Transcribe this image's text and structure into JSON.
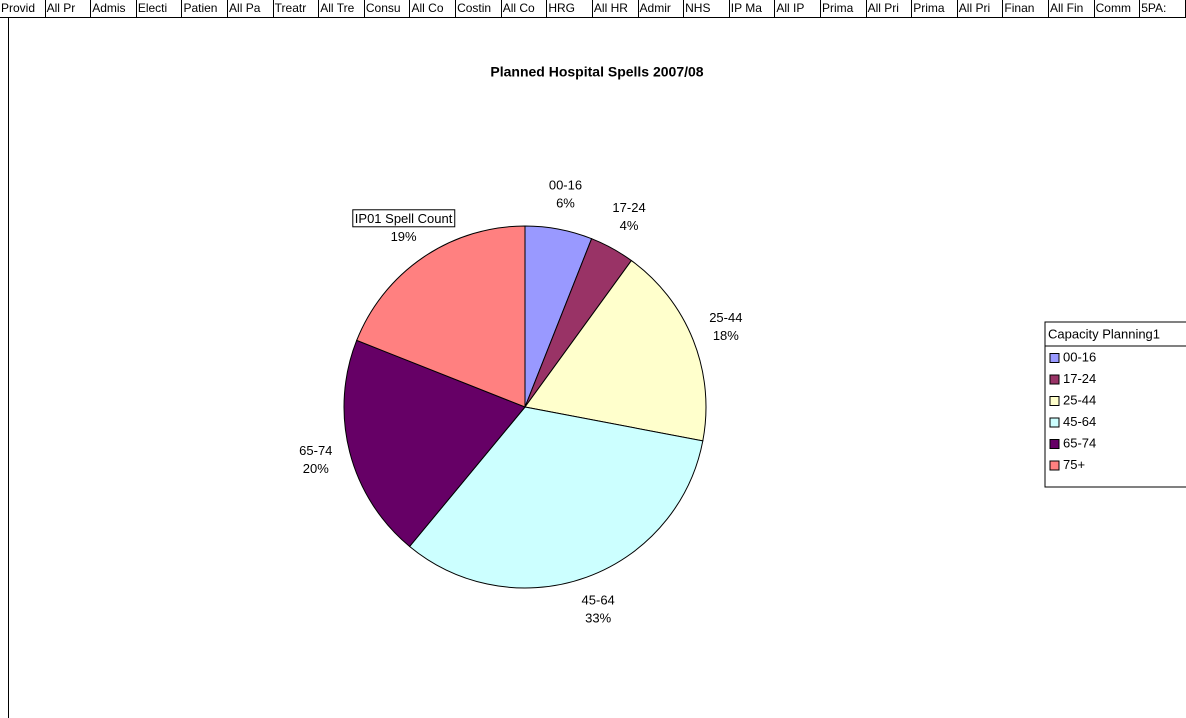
{
  "tabs": [
    "Provid",
    "All Pr",
    "Admis",
    "Electi",
    "Patien",
    "All Pa",
    "Treatr",
    "All Tre",
    "Consu",
    "All Co",
    "Costin",
    "All Co",
    "HRG",
    "All HR",
    "Admir",
    "NHS",
    "IP Ma",
    "All IP",
    "Prima",
    "All Pri",
    "Prima",
    "All Pri",
    "Finan",
    "All Fin",
    "Comm",
    "5PA:"
  ],
  "chart_data": {
    "type": "pie",
    "title": "Planned Hospital Spells 2007/08",
    "series_name": "IP01 Spell Count",
    "legend_title": "Capacity Planning1",
    "categories": [
      "00-16",
      "17-24",
      "25-44",
      "45-64",
      "65-74",
      "75+"
    ],
    "values": [
      6,
      4,
      18,
      33,
      20,
      19
    ],
    "value_labels": [
      "6%",
      "4%",
      "18%",
      "33%",
      "20%",
      "19%"
    ],
    "colors": [
      "#9999ff",
      "#993366",
      "#ffffcc",
      "#ccffff",
      "#660066",
      "#ff8080"
    ],
    "legend": "right"
  }
}
